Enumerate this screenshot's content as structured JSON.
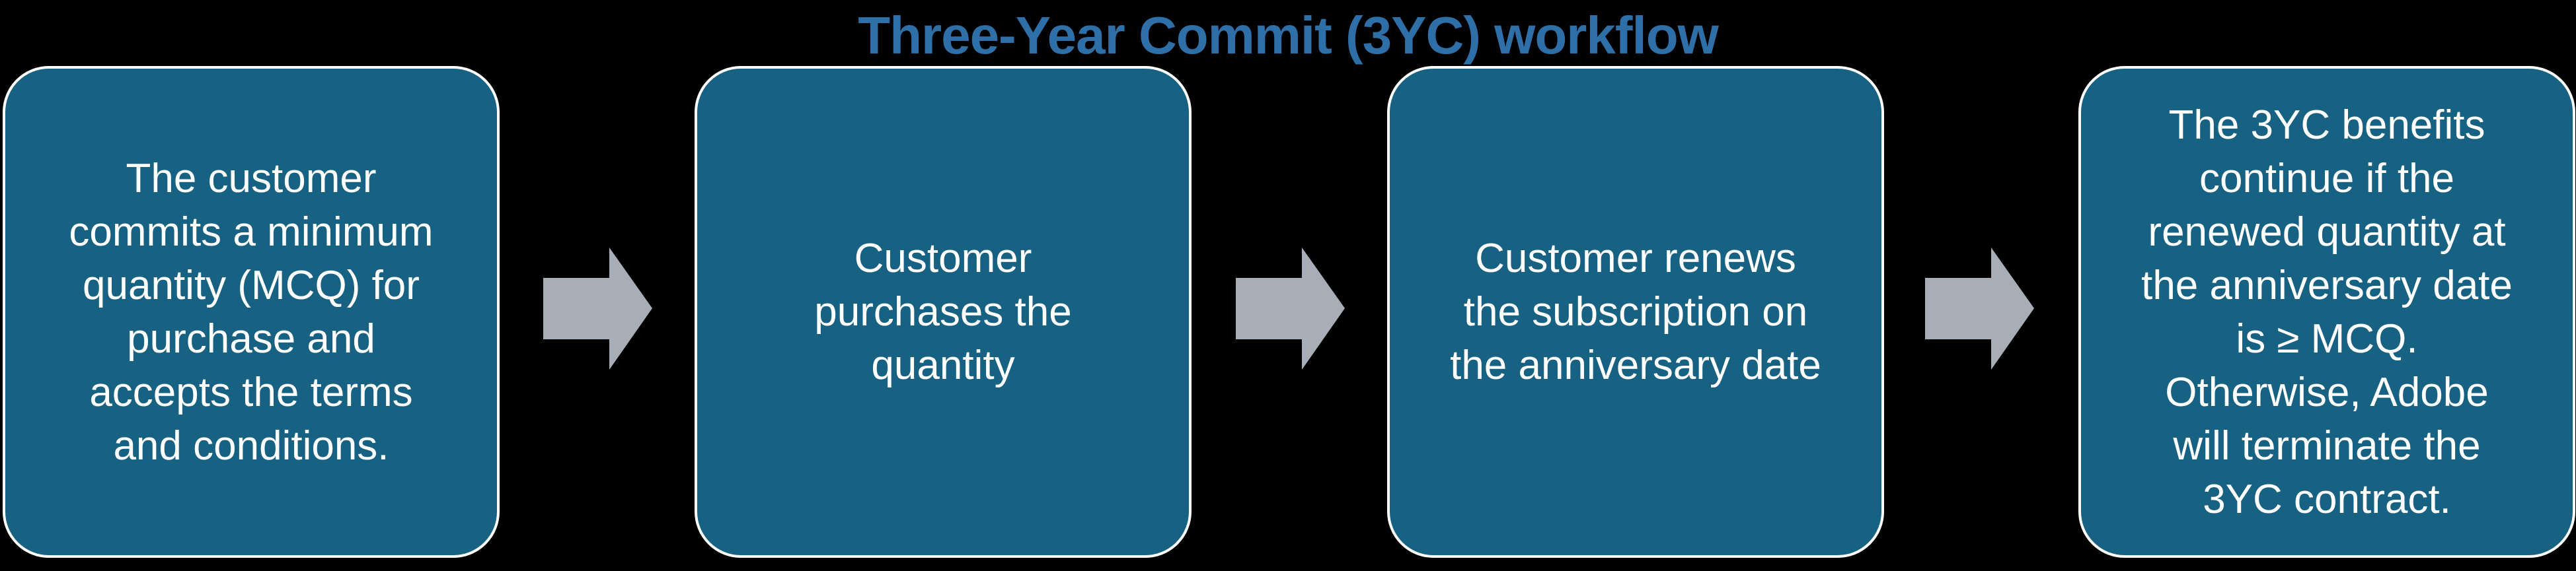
{
  "title": "Three-Year Commit (3YC) workflow",
  "colors": {
    "box_fill": "#176183",
    "box_border": "#ffffff",
    "arrow_fill": "#a7aeb8",
    "title": "#2e6fa8",
    "background": "#000000"
  },
  "steps": [
    {
      "text": "The customer\ncommits a minimum\nquantity (MCQ)  for\npurchase and\naccepts the terms\nand conditions."
    },
    {
      "text": "Customer\npurchases the\nquantity"
    },
    {
      "text": "Customer renews\nthe subscription on\nthe anniversary date"
    },
    {
      "text": "The 3YC benefits\ncontinue if the\nrenewed quantity at\nthe anniversary date\nis ≥ MCQ.\nOtherwise, Adobe\nwill terminate the\n3YC contract."
    }
  ],
  "connectors": [
    {
      "icon": "right-arrow-icon"
    },
    {
      "icon": "right-arrow-icon"
    },
    {
      "icon": "right-arrow-icon"
    }
  ]
}
